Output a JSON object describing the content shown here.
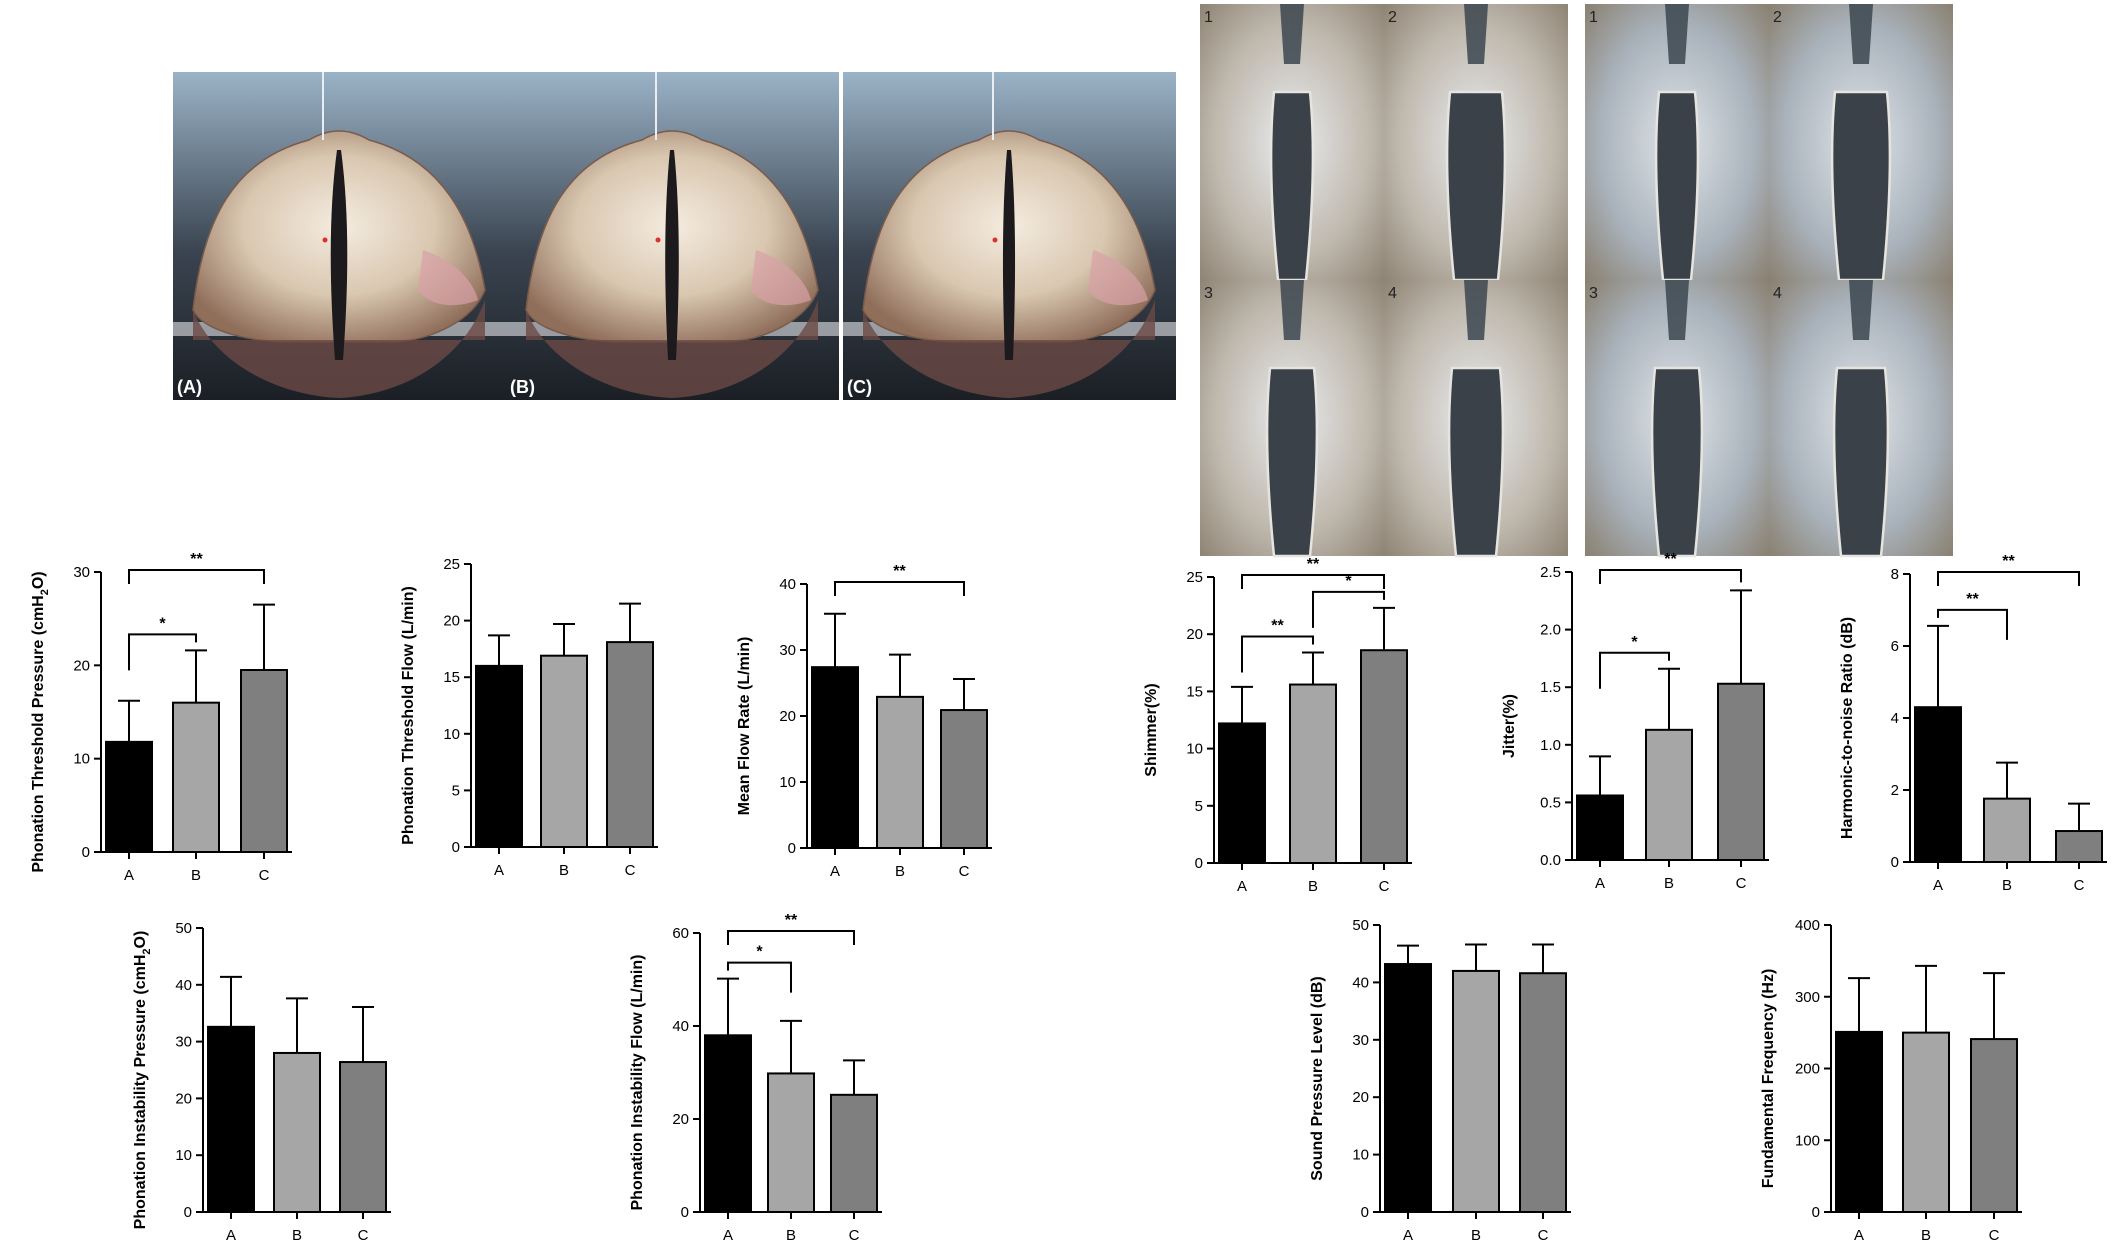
{
  "photos": {
    "panel_labels": [
      "(A)",
      "(B)",
      "(C)"
    ],
    "sequence_labels": [
      "1",
      "2",
      "3",
      "4"
    ]
  },
  "colors": {
    "A": "#000000",
    "B": "#a6a6a6",
    "C": "#7f7f7f"
  },
  "chart_data": [
    {
      "type": "bar",
      "categories": [
        "A",
        "B",
        "C"
      ],
      "values": [
        11.8,
        16.0,
        19.5
      ],
      "errors": [
        4.4,
        5.6,
        7.0
      ],
      "ylabel": "Phonation Threshold Pressure (cmH2O)",
      "ylim": [
        0,
        30
      ],
      "yticks": [
        0,
        10,
        20,
        30
      ],
      "significance": [
        {
          "from": "A",
          "to": "B",
          "label": "*"
        },
        {
          "from": "A",
          "to": "C",
          "label": "**"
        }
      ]
    },
    {
      "type": "bar",
      "categories": [
        "A",
        "B",
        "C"
      ],
      "values": [
        16.0,
        16.9,
        18.1
      ],
      "errors": [
        2.7,
        2.8,
        3.4
      ],
      "ylabel": "Phonation Threshold Flow  (L/min)",
      "ylim": [
        0,
        25
      ],
      "yticks": [
        0,
        5,
        10,
        15,
        20,
        25
      ],
      "significance": []
    },
    {
      "type": "bar",
      "categories": [
        "A",
        "B",
        "C"
      ],
      "values": [
        27.4,
        22.9,
        20.9
      ],
      "errors": [
        8.1,
        6.4,
        4.7
      ],
      "ylabel": "Mean Flow Rate  (L/min)",
      "ylim": [
        0,
        40
      ],
      "yticks": [
        0,
        10,
        20,
        30,
        40
      ],
      "significance": [
        {
          "from": "A",
          "to": "C",
          "label": "**"
        }
      ]
    },
    {
      "type": "bar",
      "categories": [
        "A",
        "B",
        "C"
      ],
      "values": [
        12.2,
        15.6,
        18.6
      ],
      "errors": [
        3.2,
        2.8,
        3.7
      ],
      "ylabel": "Shimmer(%)",
      "ylim": [
        0,
        25
      ],
      "yticks": [
        0,
        5,
        10,
        15,
        20,
        25
      ],
      "significance": [
        {
          "from": "A",
          "to": "B",
          "label": "**"
        },
        {
          "from": "B",
          "to": "C",
          "label": "*"
        },
        {
          "from": "A",
          "to": "C",
          "label": "**"
        }
      ]
    },
    {
      "type": "bar",
      "categories": [
        "A",
        "B",
        "C"
      ],
      "values": [
        0.56,
        1.13,
        1.53
      ],
      "errors": [
        0.34,
        0.53,
        0.81
      ],
      "ylabel": "Jitter(%)",
      "ylim": [
        0,
        2.5
      ],
      "yticks": [
        0.0,
        0.5,
        1.0,
        1.5,
        2.0,
        2.5
      ],
      "tick_decimals": 1,
      "significance": [
        {
          "from": "A",
          "to": "B",
          "label": "*"
        },
        {
          "from": "A",
          "to": "C",
          "label": "**"
        }
      ]
    },
    {
      "type": "bar",
      "categories": [
        "A",
        "B",
        "C"
      ],
      "values": [
        4.3,
        1.76,
        0.86
      ],
      "errors": [
        2.26,
        1.0,
        0.76
      ],
      "ylabel": "Harmonic-to-noise Ratio (dB)",
      "ylim": [
        0,
        8
      ],
      "yticks": [
        0,
        2,
        4,
        6,
        8
      ],
      "significance": [
        {
          "from": "A",
          "to": "B",
          "label": "**"
        },
        {
          "from": "A",
          "to": "C",
          "label": "**"
        }
      ]
    },
    {
      "type": "bar",
      "categories": [
        "A",
        "B",
        "C"
      ],
      "values": [
        32.6,
        28.0,
        26.4
      ],
      "errors": [
        8.8,
        9.6,
        9.7
      ],
      "ylabel": "Phonation Instability Pressure  (cmH2O)",
      "ylim": [
        0,
        50
      ],
      "yticks": [
        0,
        10,
        20,
        30,
        40,
        50
      ],
      "significance": []
    },
    {
      "type": "bar",
      "categories": [
        "A",
        "B",
        "C"
      ],
      "values": [
        38.0,
        29.8,
        25.2
      ],
      "errors": [
        12.2,
        11.3,
        7.4
      ],
      "ylabel": "Phonation Instability Flow  (L/min)",
      "ylim": [
        0,
        60
      ],
      "yticks": [
        0,
        20,
        40,
        60
      ],
      "significance": [
        {
          "from": "A",
          "to": "B",
          "label": "*"
        },
        {
          "from": "A",
          "to": "C",
          "label": "**"
        }
      ]
    },
    {
      "type": "bar",
      "categories": [
        "A",
        "B",
        "C"
      ],
      "values": [
        43.2,
        42.0,
        41.6
      ],
      "errors": [
        3.2,
        4.6,
        5.0
      ],
      "ylabel": "Sound Pressure Level (dB)",
      "ylim": [
        0,
        50
      ],
      "yticks": [
        0,
        10,
        20,
        30,
        40,
        50
      ],
      "significance": []
    },
    {
      "type": "bar",
      "categories": [
        "A",
        "B",
        "C"
      ],
      "values": [
        251,
        250,
        241
      ],
      "errors": [
        75,
        93,
        92
      ],
      "ylabel": "Fundamental Frequency (Hz)",
      "ylim": [
        0,
        400
      ],
      "yticks": [
        0,
        100,
        200,
        300,
        400
      ],
      "significance": []
    }
  ]
}
